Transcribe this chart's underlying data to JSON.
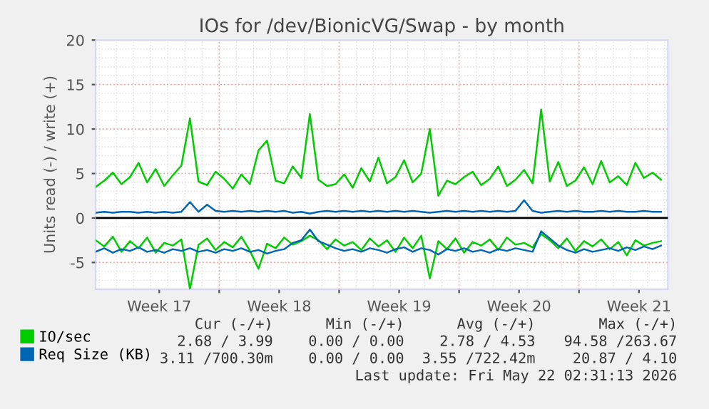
{
  "chart_data": {
    "type": "line",
    "title": "IOs for /dev/BionicVG/Swap - by month",
    "ylabel": "Units read (-) / write (+)",
    "x": [
      "2026-04-18T17:00",
      "2026-04-19T05:00",
      "2026-04-19T17:00",
      "2026-04-20T05:00",
      "2026-04-20T17:00",
      "2026-04-21T05:00",
      "2026-04-21T17:00",
      "2026-04-22T05:00",
      "2026-04-22T17:00",
      "2026-04-23T05:00",
      "2026-04-23T17:00",
      "2026-04-24T05:00",
      "2026-04-24T17:00",
      "2026-04-25T05:00",
      "2026-04-25T17:00",
      "2026-04-26T05:00",
      "2026-04-26T17:00",
      "2026-04-27T05:00",
      "2026-04-27T17:00",
      "2026-04-28T05:00",
      "2026-04-28T17:00",
      "2026-04-29T05:00",
      "2026-04-29T17:00",
      "2026-04-30T05:00",
      "2026-04-30T17:00",
      "2026-05-01T05:00",
      "2026-05-01T17:00",
      "2026-05-02T05:00",
      "2026-05-02T17:00",
      "2026-05-03T05:00",
      "2026-05-03T17:00",
      "2026-05-04T05:00",
      "2026-05-04T17:00",
      "2026-05-05T05:00",
      "2026-05-05T17:00",
      "2026-05-06T05:00",
      "2026-05-06T17:00",
      "2026-05-07T05:00",
      "2026-05-07T17:00",
      "2026-05-08T05:00",
      "2026-05-08T17:00",
      "2026-05-09T05:00",
      "2026-05-09T17:00",
      "2026-05-10T05:00",
      "2026-05-10T17:00",
      "2026-05-11T05:00",
      "2026-05-11T17:00",
      "2026-05-12T05:00",
      "2026-05-12T17:00",
      "2026-05-13T05:00",
      "2026-05-13T17:00",
      "2026-05-14T05:00",
      "2026-05-14T17:00",
      "2026-05-15T05:00",
      "2026-05-15T17:00",
      "2026-05-16T05:00",
      "2026-05-16T17:00",
      "2026-05-17T05:00",
      "2026-05-17T17:00",
      "2026-05-18T05:00",
      "2026-05-18T17:00",
      "2026-05-19T05:00",
      "2026-05-19T17:00",
      "2026-05-20T05:00",
      "2026-05-20T17:00",
      "2026-05-21T05:00",
      "2026-05-21T17:00"
    ],
    "series": [
      {
        "name": "IO/sec",
        "color": "#00cc00",
        "values": [
          3.5,
          4.2,
          5.1,
          3.8,
          4.6,
          6.2,
          4.0,
          5.5,
          3.6,
          4.8,
          5.9,
          11.2,
          4.1,
          3.7,
          5.2,
          4.4,
          3.3,
          4.9,
          3.8,
          7.6,
          8.7,
          4.2,
          3.9,
          5.8,
          4.5,
          11.7,
          4.3,
          3.6,
          3.8,
          4.9,
          3.4,
          5.6,
          4.1,
          6.8,
          3.9,
          4.6,
          6.5,
          4.0,
          5.0,
          10.0,
          2.5,
          4.2,
          3.8,
          4.6,
          5.2,
          3.7,
          4.4,
          5.8,
          3.6,
          4.3,
          5.4,
          3.9,
          12.2,
          4.1,
          6.3,
          3.6,
          4.2,
          5.7,
          3.8,
          6.4,
          4.0,
          4.7,
          3.7,
          6.2,
          4.5,
          5.1,
          4.3
        ]
      },
      {
        "color": "#00cc00",
        "values": [
          -2.5,
          -3.2,
          -2.1,
          -3.8,
          -2.6,
          -3.4,
          -2.2,
          -3.9,
          -2.8,
          -3.1,
          -2.4,
          -8.0,
          -3.0,
          -2.3,
          -3.6,
          -2.7,
          -3.3,
          -2.1,
          -3.7,
          -5.7,
          -2.9,
          -3.4,
          -2.2,
          -3.0,
          -2.6,
          -2.0,
          -2.5,
          -3.5,
          -2.4,
          -3.1,
          -2.7,
          -3.6,
          -2.3,
          -3.2,
          -2.5,
          -3.8,
          -2.2,
          -3.4,
          -2.0,
          -6.8,
          -2.6,
          -3.5,
          -2.3,
          -3.9,
          -2.7,
          -3.1,
          -2.4,
          -3.6,
          -2.2,
          -3.0,
          -2.8,
          -3.3,
          -1.8,
          -2.5,
          -3.4,
          -2.3,
          -3.7,
          -2.6,
          -3.2,
          -2.4,
          -3.5,
          -2.7,
          -4.2,
          -2.5,
          -3.1,
          -2.8,
          -2.6
        ]
      },
      {
        "name": "Req Size (KB)",
        "color": "#0066b3",
        "values": [
          0.6,
          0.7,
          0.6,
          0.7,
          0.7,
          0.6,
          0.7,
          0.6,
          0.7,
          0.6,
          0.7,
          1.8,
          0.7,
          1.5,
          0.8,
          0.7,
          0.8,
          0.7,
          0.8,
          0.7,
          0.8,
          0.7,
          0.8,
          0.6,
          0.7,
          0.5,
          0.7,
          0.8,
          0.7,
          0.8,
          0.7,
          0.8,
          0.7,
          0.8,
          0.7,
          0.8,
          0.7,
          0.8,
          0.7,
          0.6,
          0.7,
          0.8,
          0.7,
          0.8,
          0.7,
          0.8,
          0.7,
          0.8,
          0.7,
          0.8,
          2.0,
          0.8,
          0.6,
          0.7,
          0.8,
          0.7,
          0.8,
          0.7,
          0.7,
          0.8,
          0.7,
          0.8,
          0.7,
          0.7,
          0.8,
          0.7,
          0.7
        ]
      },
      {
        "color": "#0066b3",
        "values": [
          -3.8,
          -3.4,
          -3.9,
          -3.5,
          -3.7,
          -3.3,
          -3.8,
          -3.6,
          -3.9,
          -3.5,
          -3.7,
          -3.4,
          -3.8,
          -3.6,
          -3.9,
          -3.5,
          -3.7,
          -3.4,
          -3.8,
          -3.6,
          -4.0,
          -3.7,
          -3.5,
          -2.8,
          -2.5,
          -1.3,
          -2.6,
          -3.0,
          -3.4,
          -3.7,
          -3.5,
          -3.8,
          -3.4,
          -3.6,
          -3.9,
          -3.5,
          -3.3,
          -3.8,
          -3.4,
          -3.6,
          -4.1,
          -3.5,
          -3.7,
          -3.4,
          -3.8,
          -3.6,
          -3.9,
          -3.5,
          -3.7,
          -3.4,
          -3.6,
          -3.8,
          -1.5,
          -2.3,
          -3.1,
          -3.6,
          -3.9,
          -3.5,
          -3.8,
          -3.6,
          -3.4,
          -3.7,
          -3.3,
          -3.6,
          -3.2,
          -3.5,
          -3.1
        ]
      }
    ],
    "xlim": [
      "2026-04-18T17:00",
      "2026-05-22T02:30"
    ],
    "xticks": [
      {
        "value": "2026-04-22T10:00",
        "label": "Week 17"
      },
      {
        "value": "2026-04-25T22:00",
        "label": null
      },
      {
        "value": "2026-04-29T10:00",
        "label": "Week 18"
      },
      {
        "value": "2026-05-02T22:00",
        "label": null
      },
      {
        "value": "2026-05-06T10:00",
        "label": "Week 19"
      },
      {
        "value": "2026-05-09T22:00",
        "label": null
      },
      {
        "value": "2026-05-13T10:00",
        "label": "Week 20"
      },
      {
        "value": "2026-05-16T22:00",
        "label": null
      },
      {
        "value": "2026-05-20T10:00",
        "label": "Week 21"
      }
    ],
    "ylim": [
      -8,
      20
    ],
    "yticks": [
      -5,
      0,
      5,
      10,
      15,
      20
    ],
    "ref_lines": [
      {
        "axis": "y",
        "value": 0,
        "color": "#000000"
      }
    ],
    "grid": true,
    "legend": "bottom",
    "marker": "none",
    "line_style": "solid",
    "annotations": [
      "Cur (-/+)",
      "Min (-/+)",
      "Avg (-/+)",
      "Max (-/+)",
      "2.68 / 3.99",
      "0.00 / 0.00",
      "2.78 / 4.53",
      "94.58 /263.67",
      "3.11 /700.30m",
      "0.00 / 0.00",
      "3.55 /722.42m",
      "20.87 / 4.10",
      "Last update: Fri May 22 02:31:13 2026"
    ]
  }
}
